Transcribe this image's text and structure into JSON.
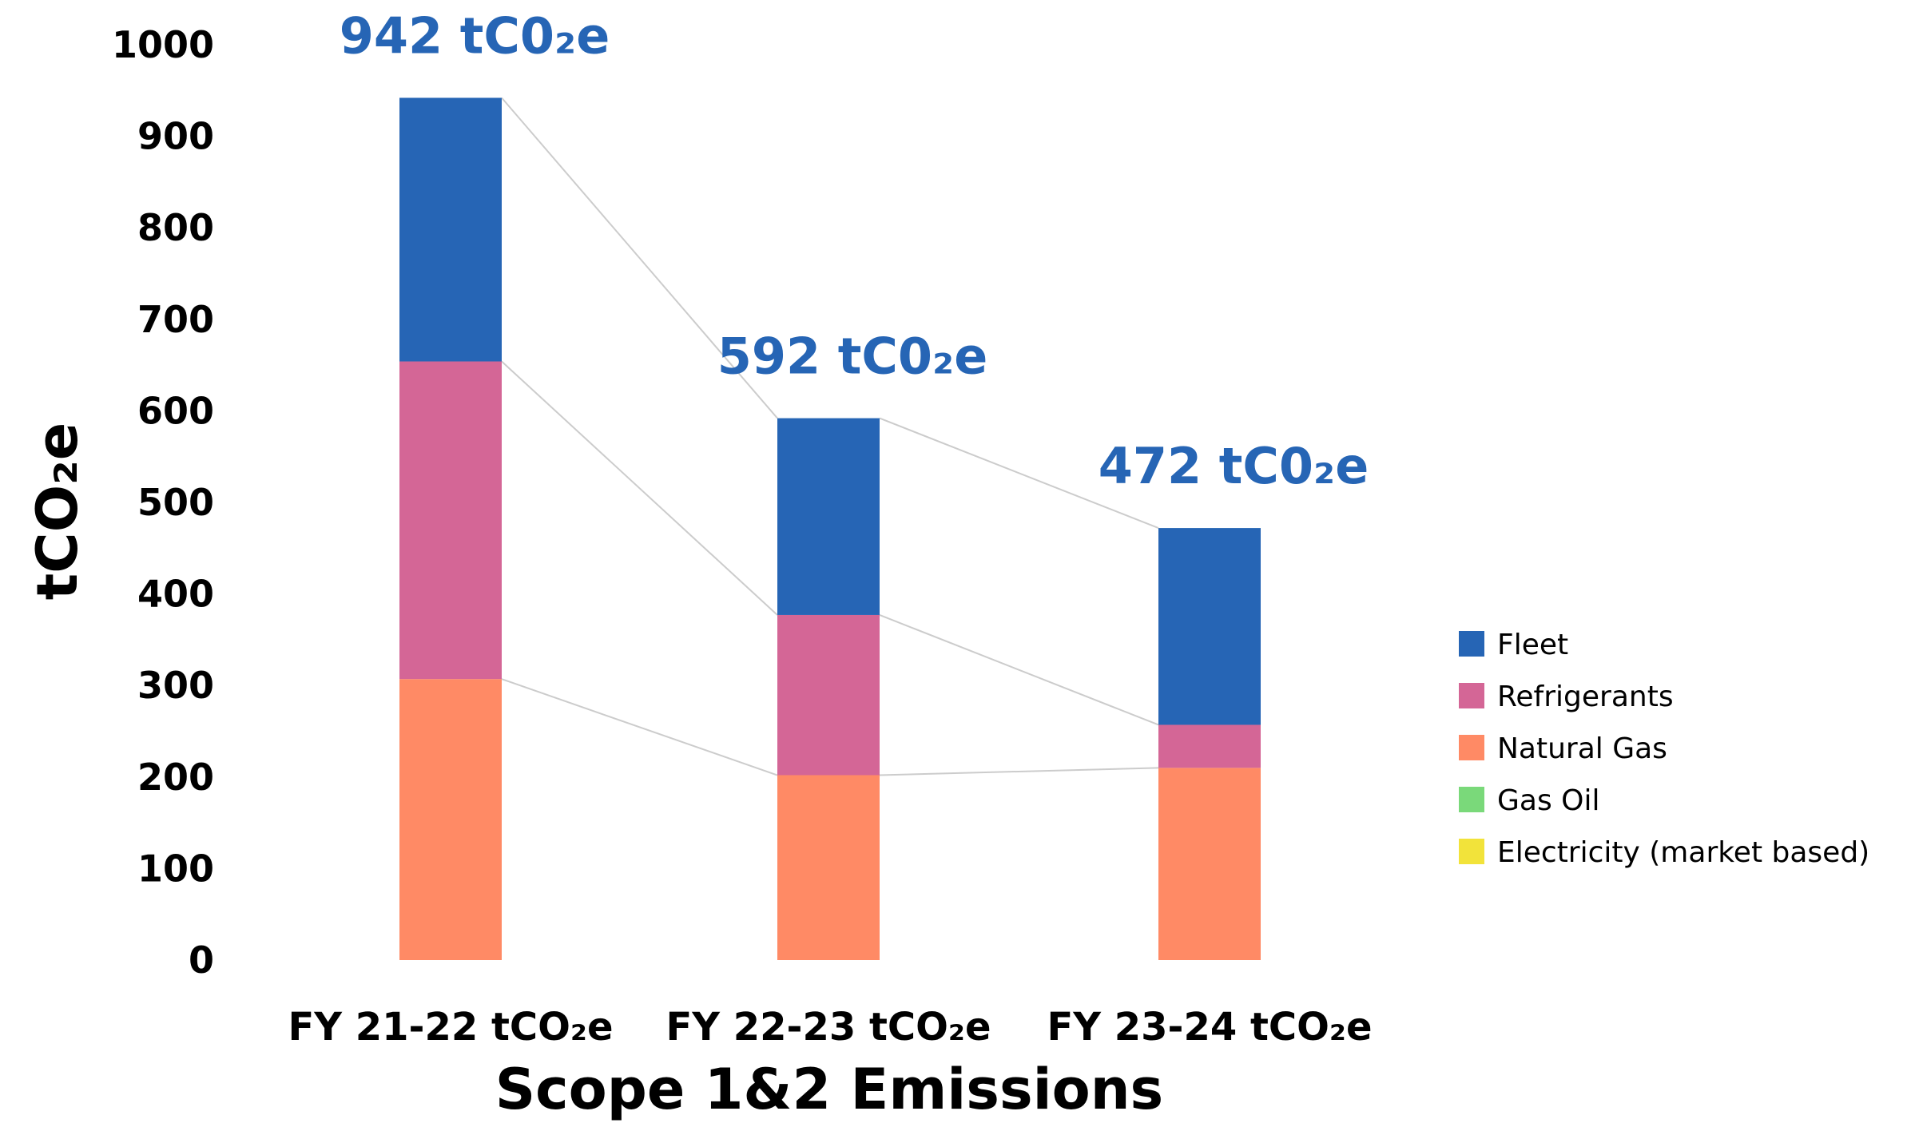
{
  "chart_data": {
    "type": "bar",
    "stacked": true,
    "categories": [
      "FY 21-22 tCO₂e",
      "FY 22-23 tCO₂e",
      "FY 23-24 tCO₂e"
    ],
    "series": [
      {
        "name": "Natural Gas",
        "color": "#ff8a65",
        "values": [
          307,
          202,
          210
        ]
      },
      {
        "name": "Refrigerants",
        "color": "#d46696",
        "values": [
          347,
          175,
          47
        ]
      },
      {
        "name": "Fleet",
        "color": "#2665b5",
        "values": [
          288,
          215,
          215
        ]
      },
      {
        "name": "Gas Oil",
        "color": "#7ad97a",
        "values": [
          0,
          0,
          0
        ]
      },
      {
        "name": "Electricity (market based)",
        "color": "#f2e33a",
        "values": [
          0,
          0,
          0
        ]
      }
    ],
    "legend_order": [
      "Fleet",
      "Refrigerants",
      "Natural Gas",
      "Gas Oil",
      "Electricity (market based)"
    ],
    "totals": [
      "942 tC0₂e",
      "592 tC0₂e",
      "472 tC0₂e"
    ],
    "xlabel": "Scope 1&2 Emissions",
    "ylabel": "tCO₂e",
    "ylim": [
      0,
      1000
    ],
    "yticks": [
      0,
      100,
      200,
      300,
      400,
      500,
      600,
      700,
      800,
      900,
      1000
    ],
    "grid": false,
    "legend_position": "right",
    "connector_color": "#cccccc"
  }
}
